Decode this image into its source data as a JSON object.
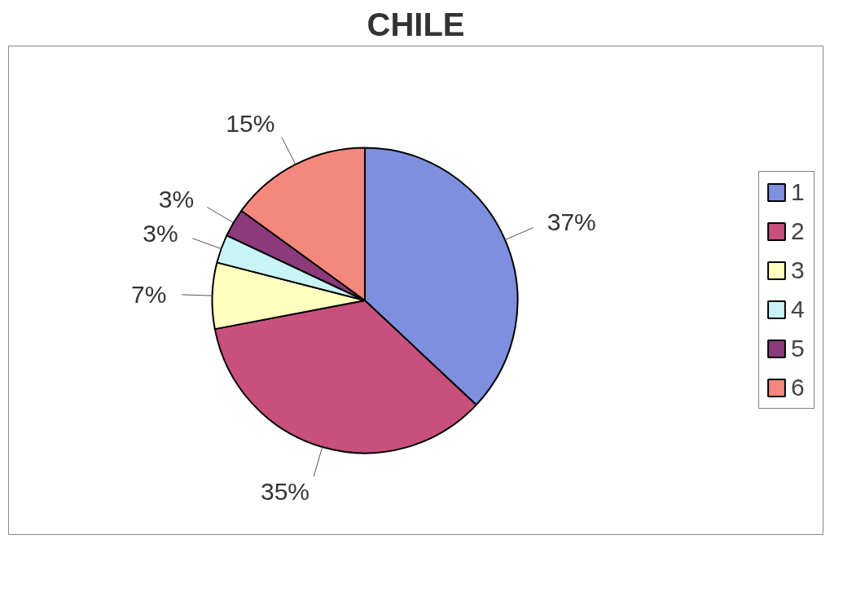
{
  "chart_data": {
    "type": "pie",
    "title": "CHILE",
    "categories": [
      "1",
      "2",
      "3",
      "4",
      "5",
      "6"
    ],
    "values": [
      37,
      35,
      7,
      3,
      3,
      15
    ],
    "value_labels": [
      "37%",
      "35%",
      "7%",
      "3%",
      "3%",
      "15%"
    ],
    "colors": [
      "#7f8fe0",
      "#c8507c",
      "#ffffc0",
      "#c8f4f8",
      "#8c3a7c",
      "#f4887c"
    ],
    "legend": "right"
  }
}
